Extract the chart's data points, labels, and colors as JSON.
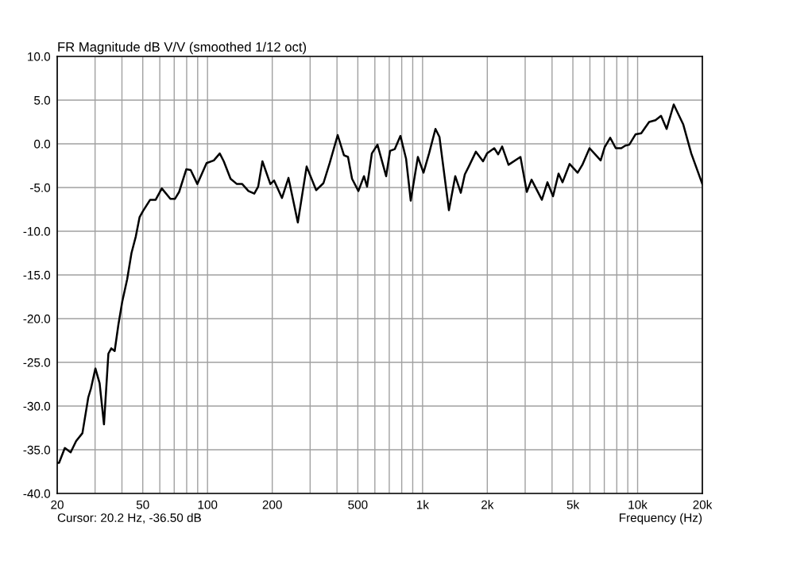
{
  "chart_data": {
    "type": "line",
    "title": "FR Magnitude dB V/V (smoothed 1/12 oct)",
    "xlabel": "Frequency (Hz)",
    "annotations": [
      "Cursor: 20.2 Hz, -36.50 dB"
    ],
    "log": "x",
    "grid": true,
    "marker": "none",
    "line_style": "solid",
    "xlim": [
      20,
      20000
    ],
    "ylim": [
      -40,
      10
    ],
    "xticks": [
      20,
      {
        "value": 30,
        "label": null
      },
      {
        "value": 40,
        "label": null
      },
      50,
      {
        "value": 60,
        "label": null
      },
      {
        "value": 70,
        "label": null
      },
      {
        "value": 80,
        "label": null
      },
      {
        "value": 90,
        "label": null
      },
      100,
      200,
      {
        "value": 300,
        "label": null
      },
      {
        "value": 400,
        "label": null
      },
      500,
      {
        "value": 600,
        "label": null
      },
      {
        "value": 700,
        "label": null
      },
      {
        "value": 800,
        "label": null
      },
      {
        "value": 900,
        "label": null
      },
      {
        "value": 1000,
        "label": "1k"
      },
      {
        "value": 2000,
        "label": "2k"
      },
      {
        "value": 3000,
        "label": null
      },
      {
        "value": 4000,
        "label": null
      },
      {
        "value": 5000,
        "label": "5k"
      },
      {
        "value": 6000,
        "label": null
      },
      {
        "value": 7000,
        "label": null
      },
      {
        "value": 8000,
        "label": null
      },
      {
        "value": 9000,
        "label": null
      },
      {
        "value": 10000,
        "label": "10k"
      },
      {
        "value": 20000,
        "label": "20k"
      }
    ],
    "yticks": [
      {
        "value": -40,
        "label": "-40.0"
      },
      {
        "value": -35,
        "label": "-35.0"
      },
      {
        "value": -30,
        "label": "-30.0"
      },
      {
        "value": -25,
        "label": "-25.0"
      },
      {
        "value": -20,
        "label": "-20.0"
      },
      {
        "value": -15,
        "label": "-15.0"
      },
      {
        "value": -10,
        "label": "-10.0"
      },
      {
        "value": -5,
        "label": "-5.0"
      },
      {
        "value": 0,
        "label": "0.0"
      },
      {
        "value": 5,
        "label": "5.0"
      },
      {
        "value": 10,
        "label": "10.0"
      }
    ],
    "series": [
      {
        "color": "#000000",
        "x": [
          20,
          20.4,
          21.7,
          23.1,
          24.5,
          26.2,
          27.9,
          28.7,
          30.1,
          31.5,
          33.0,
          34.6,
          35.7,
          37.0,
          38.5,
          40.1,
          42.3,
          44.3,
          46.4,
          48.3,
          50.1,
          54.1,
          57.4,
          61.3,
          67.2,
          70.5,
          73.8,
          79.7,
          83.5,
          89.7,
          99.0,
          107,
          114,
          119,
          128,
          137,
          145,
          155,
          165,
          172,
          180,
          196,
          204,
          222,
          238,
          263,
          289,
          320,
          346,
          370,
          403,
          431,
          450,
          470,
          503,
          534,
          552,
          581,
          617,
          677,
          706,
          743,
          789,
          838,
          881,
          951,
          1010,
          1072,
          1148,
          1198,
          1326,
          1419,
          1506,
          1572,
          1640,
          1770,
          1911,
          1994,
          2154,
          2247,
          2345,
          2510,
          2852,
          3053,
          3212,
          3588,
          3808,
          4042,
          4290,
          4476,
          4830,
          5260,
          5534,
          5976,
          6342,
          6732,
          7024,
          7456,
          7914,
          8398,
          8764,
          9144,
          9790,
          10390,
          11310,
          12110,
          12850,
          13640,
          14720,
          16310,
          17760,
          20000
        ],
        "values": [
          -36.5,
          -36.5,
          -34.8,
          -35.3,
          -34.0,
          -33.1,
          -29.0,
          -28.0,
          -25.7,
          -27.4,
          -32.1,
          -24.0,
          -23.4,
          -23.7,
          -20.7,
          -18.1,
          -15.5,
          -12.5,
          -10.6,
          -8.4,
          -7.7,
          -6.4,
          -6.4,
          -5.1,
          -6.3,
          -6.3,
          -5.5,
          -2.9,
          -3.0,
          -4.6,
          -2.2,
          -1.9,
          -1.1,
          -2.0,
          -4.0,
          -4.6,
          -4.6,
          -5.4,
          -5.7,
          -4.9,
          -2.0,
          -4.6,
          -4.2,
          -6.2,
          -3.9,
          -9.0,
          -2.6,
          -5.3,
          -4.5,
          -2.2,
          1.0,
          -1.3,
          -1.5,
          -4.0,
          -5.4,
          -3.7,
          -4.9,
          -1.1,
          -0.1,
          -3.7,
          -0.8,
          -0.6,
          0.9,
          -1.7,
          -6.5,
          -1.5,
          -3.3,
          -1.1,
          1.7,
          0.8,
          -7.6,
          -3.7,
          -5.6,
          -3.5,
          -2.6,
          -0.9,
          -2.0,
          -1.1,
          -0.5,
          -1.2,
          -0.3,
          -2.4,
          -1.5,
          -5.5,
          -4.1,
          -6.4,
          -4.4,
          -6.0,
          -3.4,
          -4.4,
          -2.3,
          -3.3,
          -2.4,
          -0.5,
          -1.2,
          -1.9,
          -0.4,
          0.7,
          -0.5,
          -0.5,
          -0.2,
          -0.1,
          1.1,
          1.2,
          2.5,
          2.7,
          3.2,
          1.7,
          4.5,
          2.2,
          -1.1,
          -4.6
        ]
      }
    ]
  }
}
